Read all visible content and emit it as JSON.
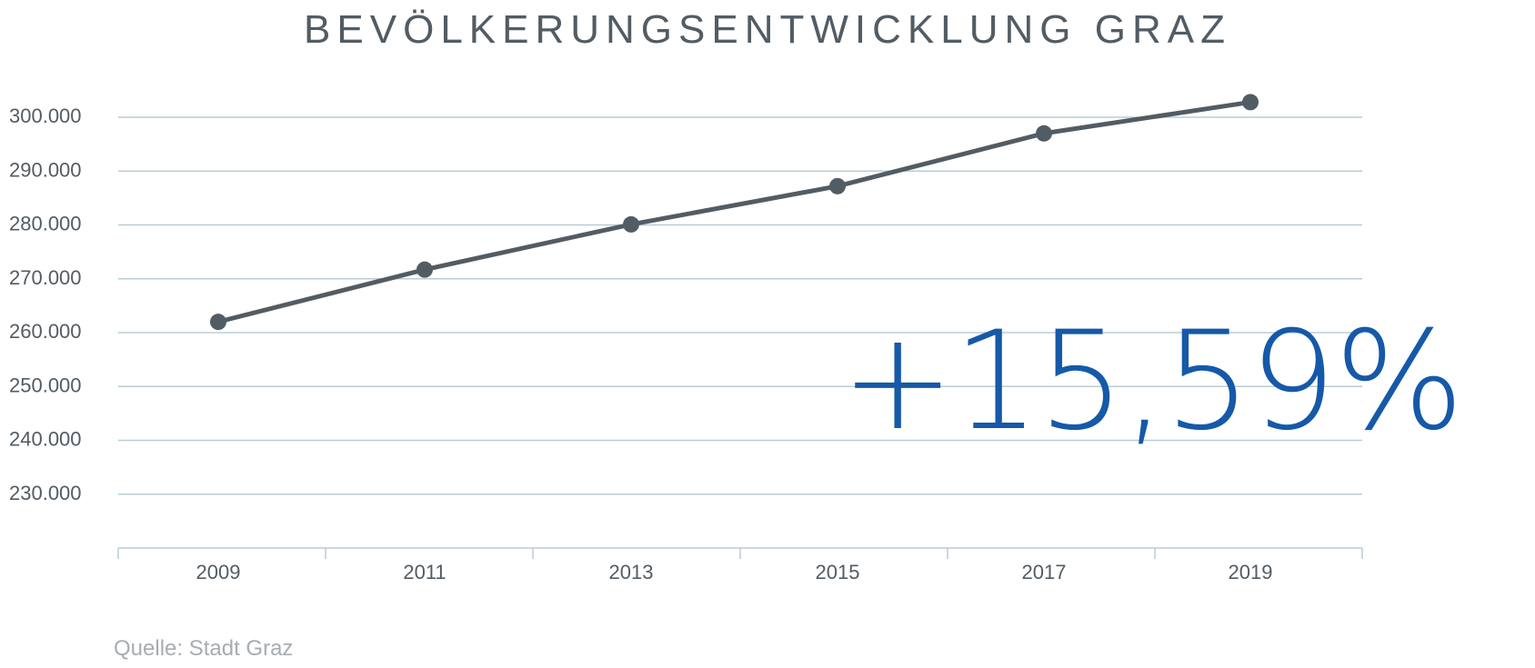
{
  "colors": {
    "line": "#525c64",
    "grid": "#b9cdd3",
    "highlight": "#1659a8",
    "text": "#525c64",
    "source": "#a6adb3"
  },
  "highlight": "+15,59%",
  "source": "Quelle: Stadt Graz",
  "chart_data": {
    "type": "line",
    "title": "BEVÖLKERUNGSENTWICKLUNG GRAZ",
    "xlabel": "",
    "ylabel": "",
    "x": [
      2009,
      2011,
      2013,
      2015,
      2017,
      2019
    ],
    "x_tick_labels": [
      "2009",
      "2011",
      "2013",
      "2015",
      "2017",
      "2019"
    ],
    "y_ticks": [
      230000,
      240000,
      250000,
      260000,
      270000,
      280000,
      290000,
      300000
    ],
    "y_tick_labels": [
      "230.000",
      "240.000",
      "250.000",
      "260.000",
      "270.000",
      "280.000",
      "290.000",
      "300.000"
    ],
    "ylim": [
      220000,
      300000
    ],
    "grid": true,
    "legend": "none",
    "series": [
      {
        "values": [
          262000,
          271700,
          280100,
          287200,
          297000,
          302800
        ]
      }
    ]
  }
}
